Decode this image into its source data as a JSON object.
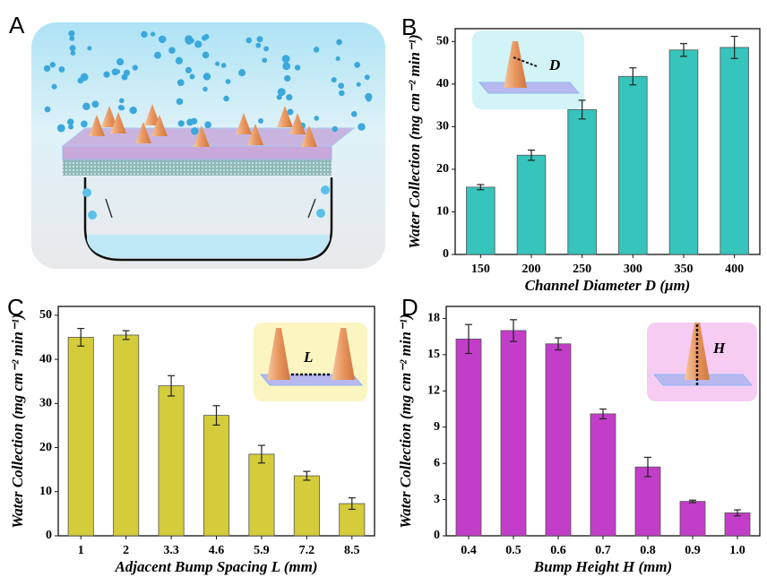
{
  "panel_labels": [
    "A",
    "B",
    "C",
    "D"
  ],
  "chart_data": [
    {
      "type": "bar",
      "inset_label": "D",
      "xlabel": "Channel Diameter D (μm)",
      "ylabel": "Water Collection (mg cm⁻² min⁻¹)",
      "categories": [
        "150",
        "200",
        "250",
        "300",
        "350",
        "400"
      ],
      "values": [
        15.8,
        23.3,
        34.0,
        41.8,
        48.0,
        48.6
      ],
      "errors": [
        0.6,
        1.2,
        2.2,
        2.0,
        1.5,
        2.6
      ],
      "color": "#36c4bc",
      "ylim": [
        0,
        53
      ],
      "yticks": [
        0,
        10,
        20,
        30,
        40,
        50
      ]
    },
    {
      "type": "bar",
      "inset_label": "L",
      "xlabel": "Adjacent Bump Spacing L (mm)",
      "ylabel": "Water Collection (mg cm⁻² min⁻¹)",
      "categories": [
        "1",
        "2",
        "3.3",
        "4.6",
        "5.9",
        "7.2",
        "8.5"
      ],
      "values": [
        45.0,
        45.5,
        34.0,
        27.3,
        18.5,
        13.6,
        7.3
      ],
      "errors": [
        2.0,
        1.0,
        2.3,
        2.2,
        2.0,
        1.0,
        1.3
      ],
      "color": "#d4cc3a",
      "ylim": [
        0,
        52
      ],
      "yticks": [
        0,
        10,
        20,
        30,
        40,
        50
      ]
    },
    {
      "type": "bar",
      "inset_label": "H",
      "xlabel": "Bump Height H (mm)",
      "ylabel": "Water Collection (mg cm⁻² min⁻¹)",
      "categories": [
        "0.4",
        "0.5",
        "0.6",
        "0.7",
        "0.8",
        "0.9",
        "1.0"
      ],
      "values": [
        16.3,
        17.0,
        15.9,
        10.1,
        5.7,
        2.85,
        1.9
      ],
      "errors": [
        1.2,
        0.9,
        0.5,
        0.4,
        0.8,
        0.1,
        0.25
      ],
      "color": "#c23ec8",
      "ylim": [
        0,
        19
      ],
      "yticks": [
        0,
        3,
        6,
        9,
        12,
        15,
        18
      ]
    }
  ]
}
